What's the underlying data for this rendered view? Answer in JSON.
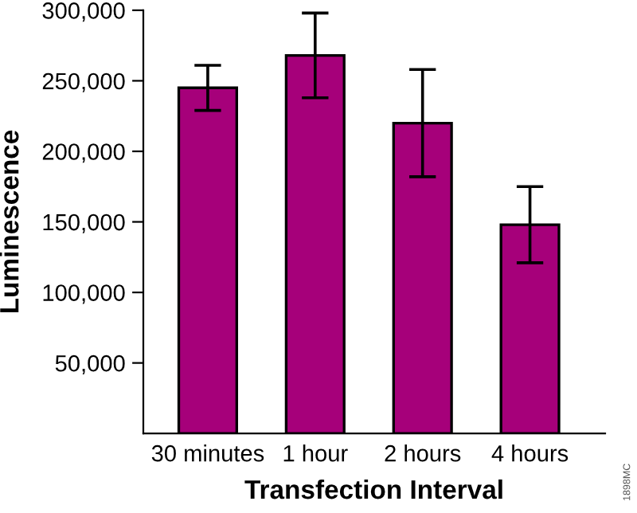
{
  "chart_data": {
    "type": "bar",
    "xlabel": "Transfection Interval",
    "ylabel": "Luminescence",
    "categories": [
      "30 minutes",
      "1 hour",
      "2 hours",
      "4 hours"
    ],
    "values": [
      245000,
      268000,
      220000,
      148000
    ],
    "errors": [
      16000,
      30000,
      38000,
      27000
    ],
    "color": "#a6007a",
    "ylim": [
      0,
      300000
    ],
    "yticks": [
      {
        "value": 50000,
        "label": "50,000"
      },
      {
        "value": 100000,
        "label": "100,000"
      },
      {
        "value": 150000,
        "label": "150,000"
      },
      {
        "value": 200000,
        "label": "200,000"
      },
      {
        "value": 250000,
        "label": "250,000"
      },
      {
        "value": 300000,
        "label": "300,000"
      }
    ],
    "grid": false,
    "annotations": [
      "1898MC"
    ]
  }
}
